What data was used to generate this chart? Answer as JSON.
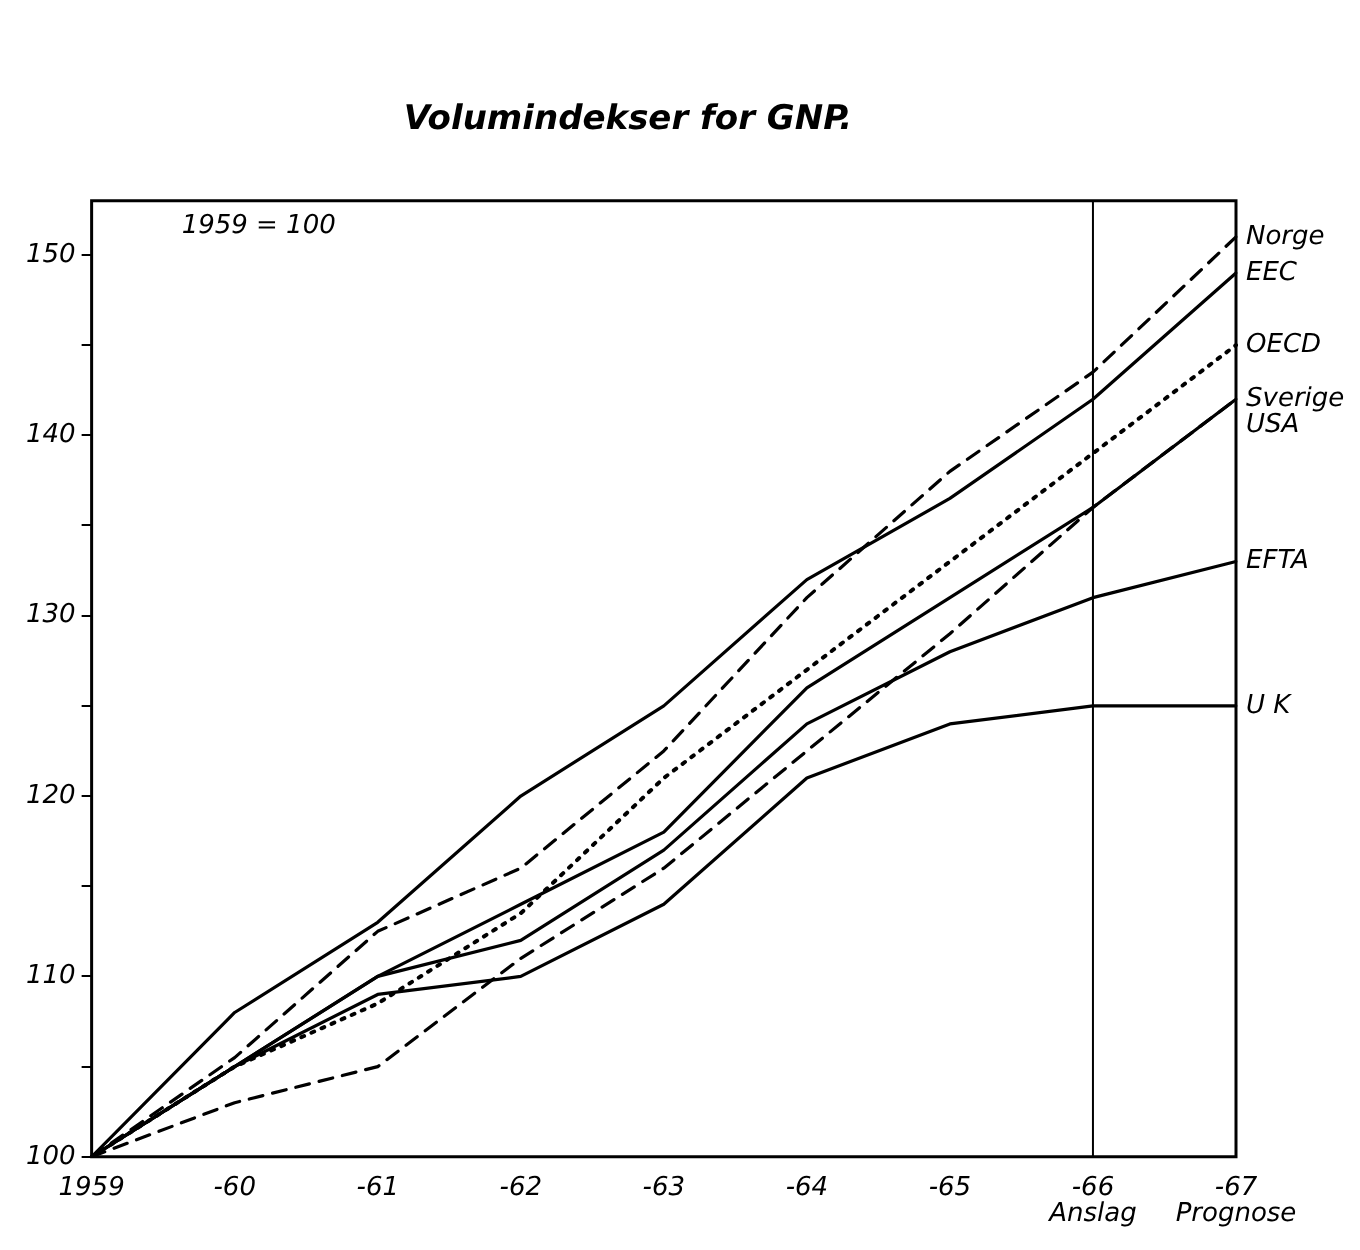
{
  "chart_data": {
    "type": "line",
    "title": "Volumindekser for GNP.",
    "categories": [
      "1959",
      "-60",
      "-61",
      "-62",
      "-63",
      "-64",
      "-65",
      "-66",
      "-67"
    ],
    "series": [
      {
        "name": "Norge",
        "color": "#000000",
        "line_style": "dashed",
        "values": [
          100,
          105.5,
          112.5,
          116,
          122.5,
          131,
          138,
          143.5,
          151
        ]
      },
      {
        "name": "EEC",
        "color": "#000000",
        "line_style": "solid",
        "values": [
          100,
          108,
          113,
          120,
          125,
          132,
          136.5,
          142,
          149
        ]
      },
      {
        "name": "OECD",
        "color": "#000000",
        "line_style": "dotted",
        "values": [
          100,
          105,
          108.5,
          113.5,
          121,
          127,
          133,
          139,
          145
        ]
      },
      {
        "name": "Sverige",
        "color": "#000000",
        "line_style": "dashed",
        "values": [
          100,
          103,
          105,
          111,
          116,
          122.5,
          129,
          136,
          142
        ]
      },
      {
        "name": "USA",
        "color": "#000000",
        "line_style": "solid",
        "values": [
          100,
          105,
          110,
          114,
          118,
          126,
          131,
          136,
          142
        ]
      },
      {
        "name": "EFTA",
        "color": "#000000",
        "line_style": "solid",
        "values": [
          100,
          105,
          110,
          112,
          117,
          124,
          128,
          131,
          133
        ]
      },
      {
        "name": "U K",
        "color": "#000000",
        "line_style": "solid",
        "values": [
          100,
          105,
          109,
          110,
          114,
          121,
          124,
          125,
          125
        ]
      }
    ],
    "ylim": [
      100,
      153
    ],
    "yticks": [
      100,
      {
        "value": 105,
        "label": null
      },
      110,
      {
        "value": 115,
        "label": null
      },
      120,
      {
        "value": 125,
        "label": null
      },
      130,
      {
        "value": 135,
        "label": null
      },
      140,
      {
        "value": 145,
        "label": null
      },
      150
    ],
    "ref_lines": [
      {
        "axis": "x",
        "value": "-66",
        "label": "Anslag"
      }
    ],
    "annotations": [
      "1959 = 100",
      "Prognose"
    ],
    "grid": false,
    "legend": false,
    "marker": "none"
  }
}
